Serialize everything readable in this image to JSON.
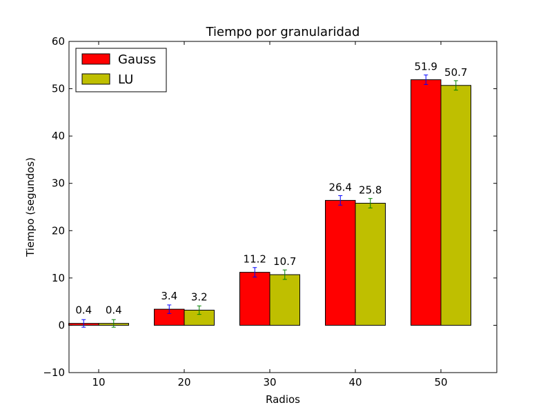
{
  "chart_data": {
    "type": "bar",
    "title": "Tiempo por granularidad",
    "xlabel": "Radios",
    "ylabel": "Tiempo (segundos)",
    "categories": [
      "10",
      "20",
      "30",
      "40",
      "50"
    ],
    "ylim": [
      -10,
      60
    ],
    "yticks": [
      -10,
      0,
      10,
      20,
      30,
      40,
      50,
      60
    ],
    "legend_position": "top-left",
    "grid": false,
    "series": [
      {
        "name": "Gauss",
        "color": "#ff0000",
        "error_color": "#0000ff",
        "values": [
          0.4,
          3.4,
          11.2,
          26.4,
          51.9
        ],
        "errors": [
          0.8,
          0.9,
          1.0,
          1.0,
          1.0
        ],
        "labels": [
          "0.4",
          "3.4",
          "11.2",
          "26.4",
          "51.9"
        ]
      },
      {
        "name": "LU",
        "color": "#bfbf00",
        "error_color": "#008000",
        "values": [
          0.4,
          3.2,
          10.7,
          25.8,
          50.7
        ],
        "errors": [
          0.8,
          0.9,
          1.0,
          1.0,
          1.0
        ],
        "labels": [
          "0.4",
          "3.2",
          "10.7",
          "25.8",
          "50.7"
        ]
      }
    ]
  }
}
